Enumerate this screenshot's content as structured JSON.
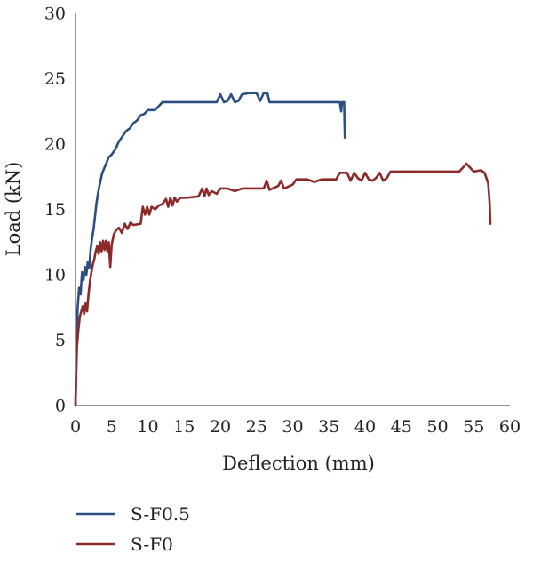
{
  "chart_data": {
    "type": "line",
    "title": "",
    "xlabel": "Deflection (mm)",
    "ylabel": "Load (kN)",
    "xlim": [
      0,
      60
    ],
    "ylim": [
      0,
      30
    ],
    "xticks": [
      0,
      5,
      10,
      15,
      20,
      25,
      30,
      35,
      40,
      45,
      50,
      55,
      60
    ],
    "yticks": [
      0,
      5,
      10,
      15,
      20,
      25,
      30
    ],
    "grid": false,
    "legend_position": "bottom-left",
    "series": [
      {
        "name": "S-F0.5",
        "color": "#2b4f81",
        "points": [
          [
            0,
            0
          ],
          [
            0.1,
            3
          ],
          [
            0.2,
            5.5
          ],
          [
            0.3,
            7.5
          ],
          [
            0.5,
            9
          ],
          [
            0.7,
            8.5
          ],
          [
            0.9,
            10.2
          ],
          [
            1.1,
            9.6
          ],
          [
            1.3,
            10.6
          ],
          [
            1.5,
            10
          ],
          [
            1.7,
            11
          ],
          [
            1.9,
            10.5
          ],
          [
            2.1,
            12
          ],
          [
            2.3,
            12.8
          ],
          [
            2.5,
            13.5
          ],
          [
            2.7,
            14.5
          ],
          [
            2.9,
            15.5
          ],
          [
            3.1,
            16.2
          ],
          [
            3.3,
            16.8
          ],
          [
            3.5,
            17.3
          ],
          [
            3.7,
            17.8
          ],
          [
            4.0,
            18.2
          ],
          [
            4.3,
            18.6
          ],
          [
            4.6,
            19
          ],
          [
            5.0,
            19.2
          ],
          [
            5.5,
            19.6
          ],
          [
            6.0,
            20.2
          ],
          [
            6.5,
            20.6
          ],
          [
            7.0,
            21
          ],
          [
            7.5,
            21.2
          ],
          [
            8.0,
            21.6
          ],
          [
            8.5,
            21.8
          ],
          [
            9.0,
            22.2
          ],
          [
            9.5,
            22.3
          ],
          [
            10.0,
            22.6
          ],
          [
            11.0,
            22.6
          ],
          [
            12.0,
            23.2
          ],
          [
            19.5,
            23.2
          ],
          [
            20.0,
            23.8
          ],
          [
            20.5,
            23.2
          ],
          [
            21.0,
            23.3
          ],
          [
            21.5,
            23.8
          ],
          [
            22.0,
            23.2
          ],
          [
            22.5,
            23.3
          ],
          [
            23.0,
            23.8
          ],
          [
            24.0,
            23.9
          ],
          [
            25.0,
            23.9
          ],
          [
            25.5,
            23.3
          ],
          [
            26.0,
            23.9
          ],
          [
            26.5,
            23.9
          ],
          [
            26.8,
            23.2
          ],
          [
            36.5,
            23.2
          ],
          [
            36.7,
            22.5
          ],
          [
            36.8,
            23.2
          ],
          [
            37.1,
            23.2
          ],
          [
            37.2,
            20.5
          ]
        ]
      },
      {
        "name": "S-F0",
        "color": "#8c2a2a",
        "points": [
          [
            0,
            0
          ],
          [
            0.1,
            2.5
          ],
          [
            0.2,
            4.5
          ],
          [
            0.4,
            5.8
          ],
          [
            0.6,
            6.8
          ],
          [
            0.8,
            7.2
          ],
          [
            1.0,
            7.6
          ],
          [
            1.2,
            7.0
          ],
          [
            1.4,
            7.8
          ],
          [
            1.6,
            7.2
          ],
          [
            1.8,
            8.5
          ],
          [
            2.0,
            9.5
          ],
          [
            2.2,
            10.2
          ],
          [
            2.4,
            10.8
          ],
          [
            2.6,
            11.2
          ],
          [
            2.8,
            11.8
          ],
          [
            3.0,
            12.2
          ],
          [
            3.2,
            11.6
          ],
          [
            3.4,
            12.5
          ],
          [
            3.6,
            11.8
          ],
          [
            3.8,
            12.6
          ],
          [
            4.0,
            11.9
          ],
          [
            4.2,
            12.6
          ],
          [
            4.4,
            11.8
          ],
          [
            4.6,
            12.5
          ],
          [
            4.8,
            10.6
          ],
          [
            5.0,
            12.3
          ],
          [
            5.3,
            13.1
          ],
          [
            5.6,
            13.4
          ],
          [
            6.0,
            13.6
          ],
          [
            6.4,
            13.2
          ],
          [
            6.8,
            13.9
          ],
          [
            7.2,
            13.5
          ],
          [
            7.6,
            14.0
          ],
          [
            8.0,
            13.8
          ],
          [
            9.0,
            13.9
          ],
          [
            9.3,
            15.2
          ],
          [
            9.6,
            14.6
          ],
          [
            9.9,
            15.2
          ],
          [
            10.2,
            14.6
          ],
          [
            10.5,
            15.2
          ],
          [
            11.0,
            15.0
          ],
          [
            11.5,
            15.3
          ],
          [
            12.0,
            15.4
          ],
          [
            12.5,
            15.8
          ],
          [
            12.8,
            15.2
          ],
          [
            13.1,
            15.9
          ],
          [
            13.4,
            15.3
          ],
          [
            13.7,
            15.9
          ],
          [
            14.0,
            15.6
          ],
          [
            14.5,
            15.9
          ],
          [
            15.5,
            15.9
          ],
          [
            17.0,
            16.0
          ],
          [
            17.5,
            16.6
          ],
          [
            17.8,
            16.0
          ],
          [
            18.1,
            16.6
          ],
          [
            18.4,
            16.1
          ],
          [
            18.8,
            16.4
          ],
          [
            19.5,
            16.2
          ],
          [
            20.0,
            16.6
          ],
          [
            21.0,
            16.6
          ],
          [
            22.0,
            16.4
          ],
          [
            23.0,
            16.6
          ],
          [
            26.0,
            16.6
          ],
          [
            26.4,
            17.2
          ],
          [
            26.8,
            16.5
          ],
          [
            27.2,
            16.6
          ],
          [
            28.0,
            16.8
          ],
          [
            28.4,
            17.2
          ],
          [
            28.8,
            16.6
          ],
          [
            29.2,
            16.7
          ],
          [
            30.0,
            16.9
          ],
          [
            30.5,
            17.3
          ],
          [
            32.0,
            17.3
          ],
          [
            33.0,
            17.1
          ],
          [
            34.0,
            17.3
          ],
          [
            35.0,
            17.3
          ],
          [
            36.0,
            17.3
          ],
          [
            36.5,
            17.8
          ],
          [
            37.5,
            17.8
          ],
          [
            38.0,
            17.2
          ],
          [
            38.5,
            17.8
          ],
          [
            39.0,
            17.4
          ],
          [
            39.5,
            17.2
          ],
          [
            40.0,
            17.8
          ],
          [
            40.5,
            17.3
          ],
          [
            41.0,
            17.2
          ],
          [
            41.5,
            17.4
          ],
          [
            42.0,
            17.8
          ],
          [
            42.5,
            17.2
          ],
          [
            43.0,
            17.4
          ],
          [
            43.5,
            17.9
          ],
          [
            52.0,
            17.9
          ],
          [
            53.0,
            17.9
          ],
          [
            53.5,
            18.2
          ],
          [
            54.0,
            18.5
          ],
          [
            54.5,
            18.2
          ],
          [
            55.0,
            17.9
          ],
          [
            56.0,
            18.0
          ],
          [
            56.5,
            17.8
          ],
          [
            57.0,
            17.0
          ],
          [
            57.2,
            15.5
          ],
          [
            57.3,
            13.9
          ]
        ]
      }
    ]
  }
}
